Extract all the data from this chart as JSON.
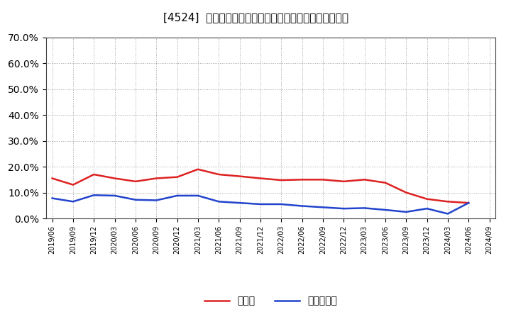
{
  "title": "[4524]  現預金、有利子負債の総資産に対する比率の推移",
  "x_labels": [
    "2019/06",
    "2019/09",
    "2019/12",
    "2020/03",
    "2020/06",
    "2020/09",
    "2020/12",
    "2021/03",
    "2021/06",
    "2021/09",
    "2021/12",
    "2022/03",
    "2022/06",
    "2022/09",
    "2022/12",
    "2023/03",
    "2023/06",
    "2023/09",
    "2023/12",
    "2024/03",
    "2024/06",
    "2024/09"
  ],
  "cash_ratio": [
    0.155,
    0.13,
    0.17,
    0.155,
    0.143,
    0.155,
    0.16,
    0.19,
    0.17,
    0.163,
    0.155,
    0.148,
    0.15,
    0.15,
    0.143,
    0.15,
    0.138,
    0.1,
    0.075,
    0.065,
    0.06,
    null
  ],
  "debt_ratio": [
    0.078,
    0.065,
    0.09,
    0.088,
    0.072,
    0.07,
    0.088,
    0.088,
    0.065,
    0.06,
    0.055,
    0.055,
    0.048,
    0.043,
    0.038,
    0.04,
    0.033,
    0.025,
    0.038,
    0.018,
    0.06,
    null
  ],
  "ylim": [
    0.0,
    0.7
  ],
  "yticks": [
    0.0,
    0.1,
    0.2,
    0.3,
    0.4,
    0.5,
    0.6,
    0.7
  ],
  "cash_color": "#dd2222",
  "debt_color": "#2244cc",
  "background_color": "#ffffff",
  "plot_bg_color": "#ffffff",
  "grid_color": "#999999",
  "legend_cash": "現預金",
  "legend_debt": "有利子負債"
}
